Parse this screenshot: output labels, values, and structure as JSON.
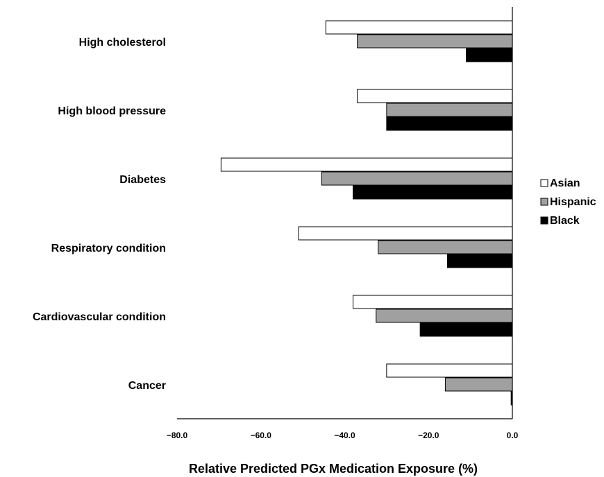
{
  "chart_data": {
    "type": "bar",
    "orientation": "horizontal",
    "categories": [
      "High cholesterol",
      "High blood pressure",
      "Diabetes",
      "Respiratory condition",
      "Cardiovascular condition",
      "Cancer"
    ],
    "series": [
      {
        "name": "Asian",
        "color": "#ffffff",
        "values": [
          -44.5,
          -37.0,
          -69.5,
          -51.0,
          -38.0,
          -30.0
        ]
      },
      {
        "name": "Hispanic",
        "color": "#a0a0a0",
        "values": [
          -37.0,
          -30.0,
          -45.5,
          -32.0,
          -32.5,
          -16.0
        ]
      },
      {
        "name": "Black",
        "color": "#000000",
        "values": [
          -11.0,
          -30.0,
          -38.0,
          -15.5,
          -22.0,
          -0.3
        ]
      }
    ],
    "xlabel": "Relative Predicted PGx Medication Exposure (%)",
    "ylabel": "",
    "xlim": [
      -80,
      0
    ],
    "xticks": [
      -80,
      -60,
      -40,
      -20,
      0
    ],
    "xtick_labels": [
      "−80.0",
      "−60.0",
      "−40.0",
      "−20.0",
      "0.0"
    ],
    "grid": false,
    "legend_position": "right"
  }
}
